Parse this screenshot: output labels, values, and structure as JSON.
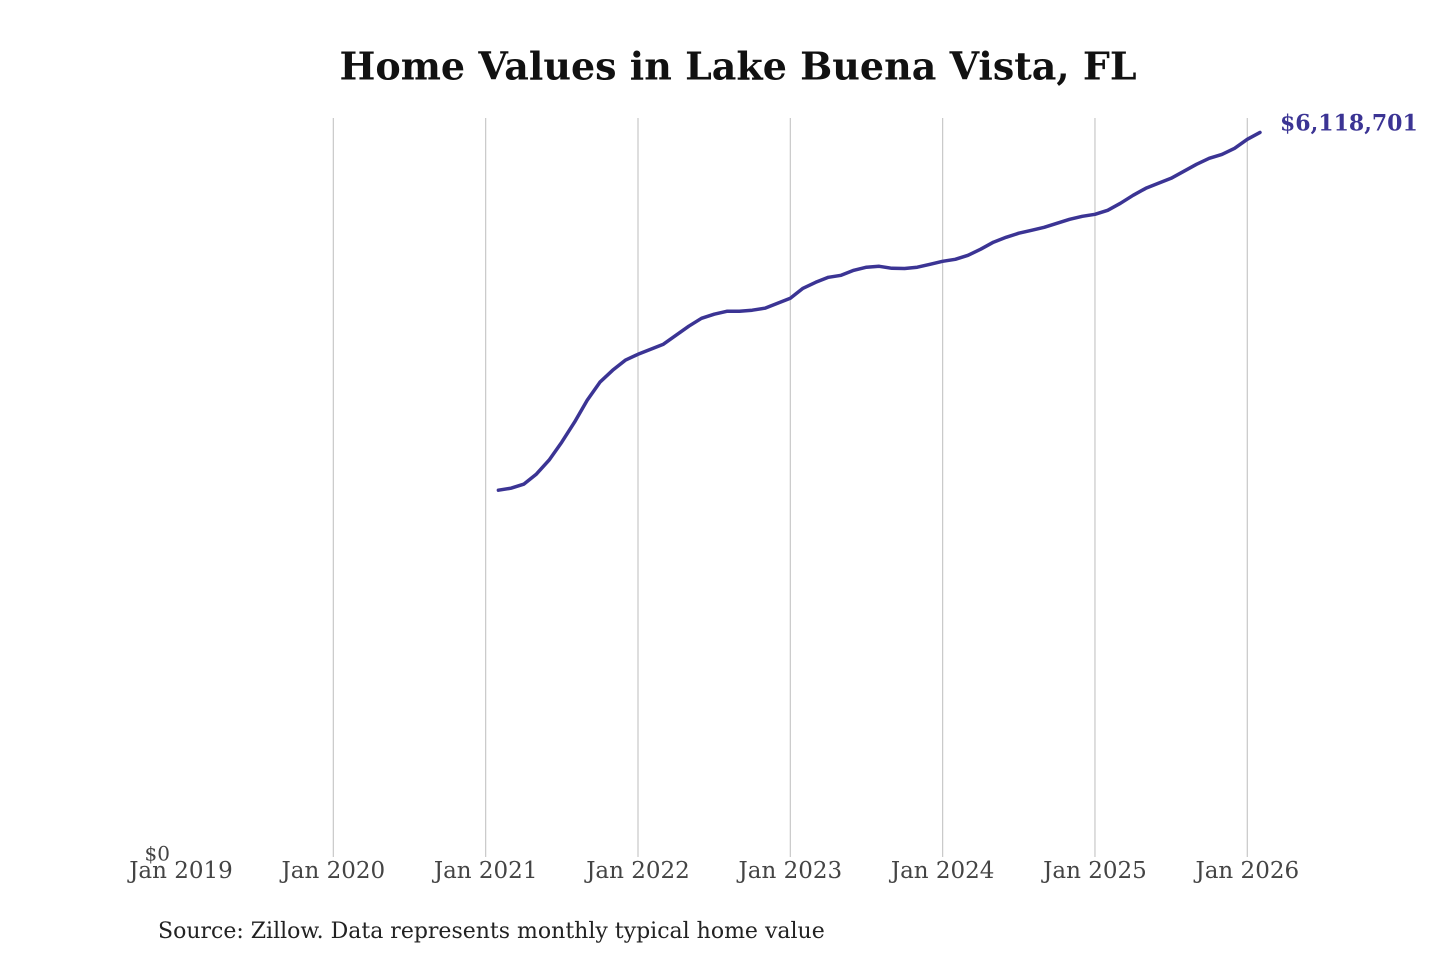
{
  "chart_data": {
    "type": "line",
    "title": "Home Values in Lake Buena Vista, FL",
    "source": "Source: Zillow. Data represents monthly typical home value",
    "color": "#3b3494",
    "x": [
      "2021-02",
      "2021-03",
      "2021-04",
      "2021-05",
      "2021-06",
      "2021-07",
      "2021-08",
      "2021-09",
      "2021-10",
      "2021-11",
      "2021-12",
      "2022-01",
      "2022-02",
      "2022-03",
      "2022-04",
      "2022-05",
      "2022-06",
      "2022-07",
      "2022-08",
      "2022-09",
      "2022-10",
      "2022-11",
      "2022-12",
      "2023-01",
      "2023-02",
      "2023-03",
      "2023-04",
      "2023-05",
      "2023-06",
      "2023-07",
      "2023-08",
      "2023-09",
      "2023-10",
      "2023-11",
      "2023-12",
      "2024-01",
      "2024-02",
      "2024-03",
      "2024-04",
      "2024-05",
      "2024-06",
      "2024-07",
      "2024-08",
      "2024-09",
      "2024-10",
      "2024-11",
      "2024-12",
      "2025-01",
      "2025-02",
      "2025-03",
      "2025-04",
      "2025-05",
      "2025-06",
      "2025-07",
      "2025-08",
      "2025-09",
      "2025-10",
      "2025-11",
      "2025-12",
      "2026-01",
      "2026-02"
    ],
    "values": [
      3097000,
      3114000,
      3148000,
      3233000,
      3351000,
      3503000,
      3671000,
      3857000,
      4009000,
      4110000,
      4195000,
      4245000,
      4288000,
      4330000,
      4406000,
      4482000,
      4549000,
      4583000,
      4608000,
      4609000,
      4617000,
      4634000,
      4676000,
      4718000,
      4802000,
      4853000,
      4895000,
      4912000,
      4954000,
      4980000,
      4988000,
      4971000,
      4969000,
      4980000,
      5005000,
      5030000,
      5047000,
      5081000,
      5132000,
      5191000,
      5233000,
      5267000,
      5292000,
      5317000,
      5351000,
      5385000,
      5410000,
      5427000,
      5461000,
      5520000,
      5587000,
      5646000,
      5689000,
      5731000,
      5790000,
      5849000,
      5900000,
      5933000,
      5984000,
      6060000,
      6118701
    ],
    "value_labels": [
      null,
      null,
      null,
      null,
      null,
      null,
      null,
      null,
      null,
      null,
      null,
      null,
      null,
      null,
      null,
      null,
      null,
      null,
      null,
      null,
      null,
      null,
      null,
      null,
      null,
      null,
      null,
      null,
      null,
      null,
      null,
      null,
      null,
      null,
      null,
      null,
      null,
      null,
      null,
      null,
      null,
      null,
      null,
      null,
      null,
      null,
      null,
      null,
      null,
      null,
      null,
      null,
      null,
      null,
      null,
      null,
      null,
      null,
      null,
      null,
      "$6,118,701"
    ],
    "xlim": [
      "2019-01",
      "2026-02"
    ],
    "xticks": [
      {
        "value": "2019-01",
        "label": "Jan 2019"
      },
      {
        "value": "2020-01",
        "label": "Jan 2020"
      },
      {
        "value": "2021-01",
        "label": "Jan 2021"
      },
      {
        "value": "2022-01",
        "label": "Jan 2022"
      },
      {
        "value": "2023-01",
        "label": "Jan 2023"
      },
      {
        "value": "2024-01",
        "label": "Jan 2024"
      },
      {
        "value": "2025-01",
        "label": "Jan 2025"
      },
      {
        "value": "2026-01",
        "label": "Jan 2026"
      }
    ],
    "ylim": [
      0,
      6240000
    ],
    "yticks": [
      {
        "value": 0,
        "label": "$0"
      }
    ],
    "grid": true
  }
}
